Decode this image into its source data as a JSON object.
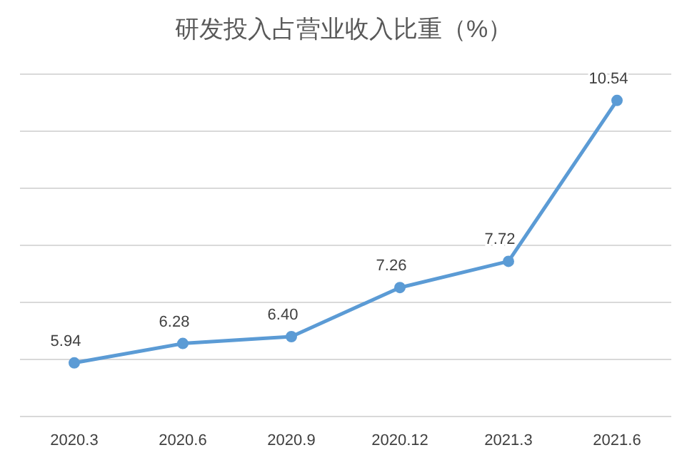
{
  "chart_data": {
    "type": "line",
    "title": "研发投入占营业收入比重（%）",
    "categories": [
      "2020.3",
      "2020.6",
      "2020.9",
      "2020.12",
      "2021.3",
      "2021.6"
    ],
    "series": [
      {
        "color": "#5b9bd5",
        "values": [
          5.94,
          6.28,
          6.4,
          7.26,
          7.72,
          10.54
        ],
        "value_labels": [
          "5.94",
          "6.28",
          "6.40",
          "7.26",
          "7.72",
          "10.54"
        ]
      }
    ],
    "ylim": [
      5,
      11
    ],
    "yticks": [
      {
        "value": 5,
        "label": null
      },
      {
        "value": 6,
        "label": null
      },
      {
        "value": 7,
        "label": null
      },
      {
        "value": 8,
        "label": null
      },
      {
        "value": 9,
        "label": null
      },
      {
        "value": 10,
        "label": null
      },
      {
        "value": 11,
        "label": null
      }
    ],
    "tick_labels": "x",
    "grid": "y",
    "marker": "circle",
    "line_style": "solid"
  }
}
